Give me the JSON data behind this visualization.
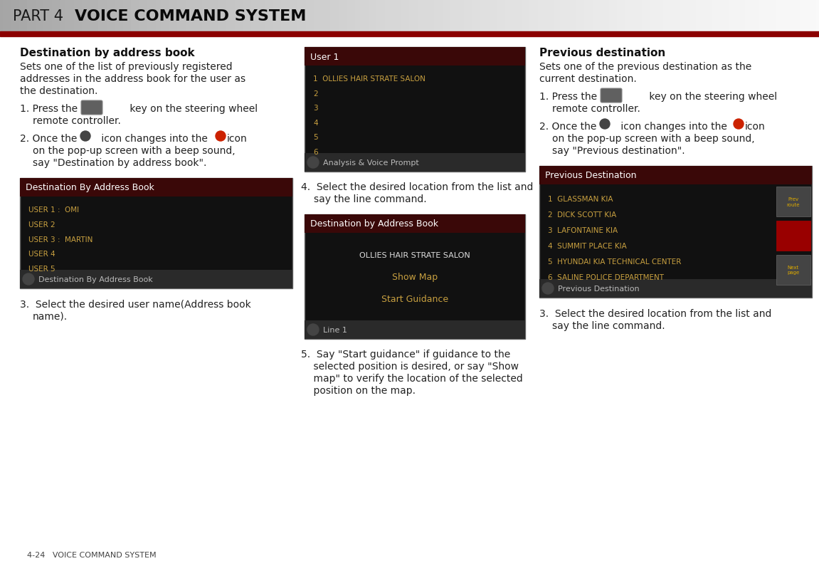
{
  "page_title_part": "PART 4  ",
  "page_title_bold": "VOICE COMMAND SYSTEM",
  "red_line_color": "#8b0000",
  "footer_text": "4-24   VOICE COMMAND SYSTEM",
  "col1_heading": "Destination by address book",
  "col3_heading": "Previous destination",
  "screen1_title": "User 1",
  "screen1_items": [
    "1  OLLIES HAIR STRATE SALON",
    "2",
    "3",
    "4",
    "5",
    "6"
  ],
  "screen1_footer": "Analysis & Voice Prompt",
  "screen2_title": "Destination by Address Book",
  "screen2_center1": "OLLIES HAIR STRATE SALON",
  "screen2_center2": "Show Map",
  "screen2_center3": "Start Guidance",
  "screen2_footer": "Line 1",
  "screen_addr_title": "Destination By Address Book",
  "screen_addr_items": [
    "USER 1 :  OMI",
    "USER 2",
    "USER 3 :  MARTIN",
    "USER 4",
    "USER 5"
  ],
  "screen_addr_footer": "Destination By Address Book",
  "screen3_title": "Previous Destination",
  "screen3_items": [
    "1  GLASSMAN KIA",
    "2  DICK SCOTT KIA",
    "3  LAFONTAINE KIA",
    "4  SUMMIT PLACE KIA",
    "5  HYUNDAI KIA TECHNICAL CENTER",
    "6  SALINE POLICE DEPARTMENT"
  ],
  "screen3_footer": "Previous Destination",
  "bg_color": "#ffffff",
  "screen_bg": "#111111",
  "screen_dark_red": "#3a0808",
  "screen_text_gold": "#c8a040",
  "screen_footer_bg": "#2a2a2a",
  "screen_footer_color": "#bbbbbb",
  "text_dark": "#111111",
  "text_body": "#222222"
}
